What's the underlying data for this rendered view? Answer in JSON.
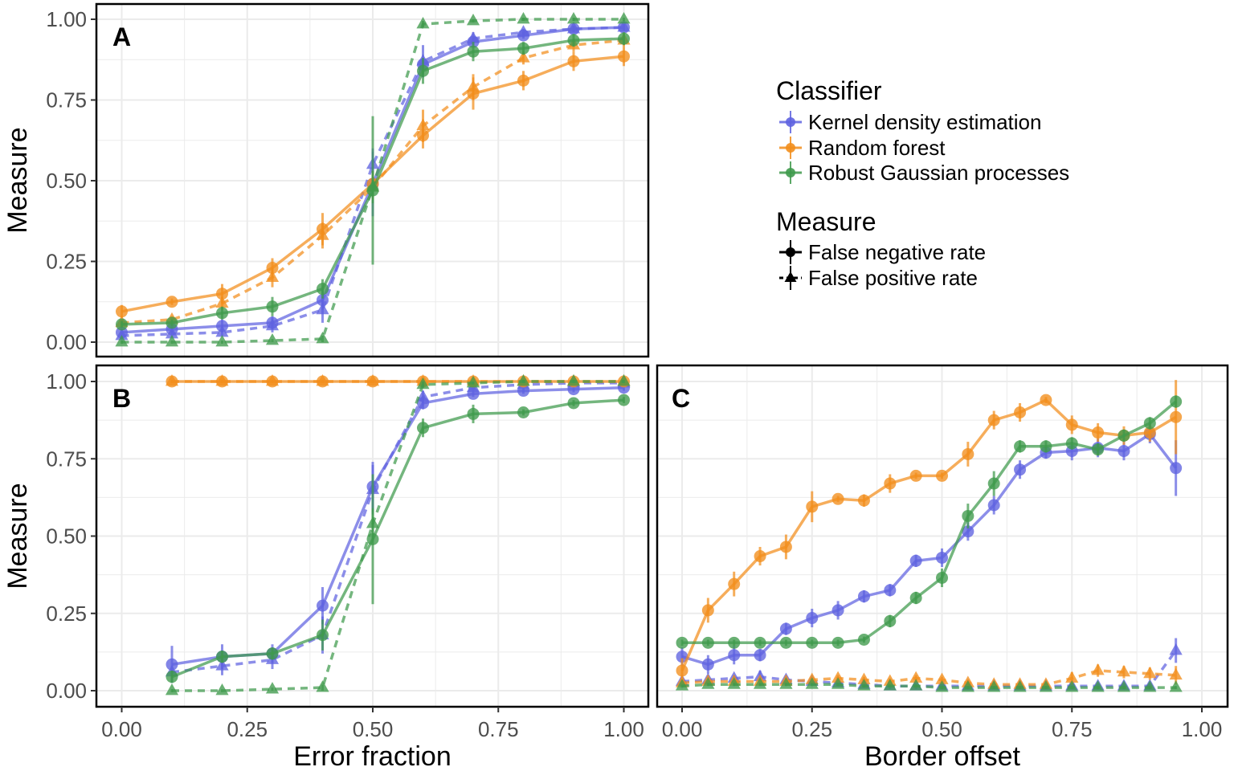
{
  "chart_data": [
    {
      "panel": "A",
      "type": "line",
      "xlabel": "",
      "ylabel": "Measure",
      "xlim": [
        0,
        1
      ],
      "ylim": [
        0,
        1
      ],
      "x_ticks": [
        "0.00",
        "0.25",
        "0.50",
        "0.75",
        "1.00"
      ],
      "y_ticks": [
        "0.00",
        "0.25",
        "0.50",
        "0.75",
        "1.00"
      ],
      "x": [
        0.0,
        0.1,
        0.2,
        0.3,
        0.4,
        0.5,
        0.6,
        0.7,
        0.8,
        0.9,
        1.0
      ],
      "series": [
        {
          "classifier": "kde",
          "measure": "fnr",
          "values": [
            0.03,
            0.04,
            0.05,
            0.06,
            0.13,
            0.49,
            0.86,
            0.93,
            0.95,
            0.97,
            0.975
          ],
          "err": [
            0.01,
            0.01,
            0.02,
            0.02,
            0.03,
            0.1,
            0.02,
            0.01,
            0.01,
            0.01,
            0.01
          ]
        },
        {
          "classifier": "kde",
          "measure": "fpr",
          "values": [
            0.02,
            0.025,
            0.03,
            0.05,
            0.1,
            0.55,
            0.87,
            0.94,
            0.96,
            0.97,
            0.975
          ],
          "err": [
            0.01,
            0.01,
            0.01,
            0.02,
            0.04,
            0.05,
            0.05,
            0.02,
            0.01,
            0.01,
            0.01
          ]
        },
        {
          "classifier": "rf",
          "measure": "fnr",
          "values": [
            0.095,
            0.125,
            0.15,
            0.23,
            0.35,
            0.49,
            0.64,
            0.77,
            0.81,
            0.87,
            0.885
          ],
          "err": [
            0.02,
            0.01,
            0.03,
            0.03,
            0.05,
            0.04,
            0.04,
            0.05,
            0.03,
            0.03,
            0.03
          ]
        },
        {
          "classifier": "rf",
          "measure": "fpr",
          "values": [
            0.06,
            0.07,
            0.12,
            0.2,
            0.33,
            0.48,
            0.67,
            0.79,
            0.88,
            0.92,
            0.935
          ],
          "err": [
            0.01,
            0.01,
            0.02,
            0.03,
            0.04,
            0.04,
            0.05,
            0.04,
            0.02,
            0.02,
            0.02
          ]
        },
        {
          "classifier": "rgp",
          "measure": "fnr",
          "values": [
            0.055,
            0.06,
            0.09,
            0.11,
            0.165,
            0.47,
            0.84,
            0.9,
            0.91,
            0.935,
            0.94
          ],
          "err": [
            0.01,
            0.01,
            0.02,
            0.03,
            0.03,
            0.23,
            0.04,
            0.03,
            0.02,
            0.02,
            0.02
          ]
        },
        {
          "classifier": "rgp",
          "measure": "fpr",
          "values": [
            0.0,
            0.0,
            0.0,
            0.005,
            0.01,
            0.48,
            0.985,
            0.995,
            1.0,
            1.0,
            1.0
          ],
          "err": [
            0.005,
            0.005,
            0.005,
            0.005,
            0.01,
            0.05,
            0.01,
            0.005,
            0.005,
            0.005,
            0.005
          ]
        }
      ]
    },
    {
      "panel": "B",
      "type": "line",
      "xlabel": "Error fraction",
      "ylabel": "Measure",
      "xlim": [
        0,
        1
      ],
      "ylim": [
        0,
        1
      ],
      "x_ticks": [
        "0.00",
        "0.25",
        "0.50",
        "0.75",
        "1.00"
      ],
      "y_ticks": [
        "0.00",
        "0.25",
        "0.50",
        "0.75",
        "1.00"
      ],
      "x": [
        0.1,
        0.2,
        0.3,
        0.4,
        0.5,
        0.6,
        0.7,
        0.8,
        0.9,
        1.0
      ],
      "series": [
        {
          "classifier": "kde",
          "measure": "fnr",
          "values": [
            0.085,
            0.11,
            0.12,
            0.275,
            0.66,
            0.93,
            0.96,
            0.97,
            0.975,
            0.98
          ],
          "err": [
            0.06,
            0.04,
            0.03,
            0.06,
            0.08,
            0.02,
            0.01,
            0.01,
            0.01,
            0.01
          ]
        },
        {
          "classifier": "kde",
          "measure": "fpr",
          "values": [
            0.06,
            0.08,
            0.1,
            0.18,
            0.65,
            0.95,
            0.98,
            0.99,
            0.995,
            0.995
          ],
          "err": [
            0.02,
            0.03,
            0.03,
            0.06,
            0.08,
            0.02,
            0.01,
            0.005,
            0.005,
            0.005
          ]
        },
        {
          "classifier": "rf",
          "measure": "fnr",
          "values": [
            1.0,
            1.0,
            1.0,
            1.0,
            1.0,
            1.0,
            1.0,
            1.0,
            1.0,
            1.0
          ],
          "err": [
            0.005,
            0.005,
            0.005,
            0.005,
            0.005,
            0.005,
            0.005,
            0.005,
            0.005,
            0.005
          ]
        },
        {
          "classifier": "rf",
          "measure": "fpr",
          "values": [
            1.0,
            1.0,
            1.0,
            1.0,
            1.0,
            1.0,
            1.0,
            1.0,
            1.0,
            1.0
          ],
          "err": [
            0.005,
            0.005,
            0.005,
            0.005,
            0.005,
            0.005,
            0.005,
            0.005,
            0.005,
            0.005
          ]
        },
        {
          "classifier": "rgp",
          "measure": "fnr",
          "values": [
            0.045,
            0.11,
            0.12,
            0.18,
            0.49,
            0.85,
            0.895,
            0.9,
            0.93,
            0.94
          ],
          "err": [
            0.02,
            0.02,
            0.02,
            0.05,
            0.21,
            0.03,
            0.03,
            0.01,
            0.01,
            0.01
          ]
        },
        {
          "classifier": "rgp",
          "measure": "fpr",
          "values": [
            0.0,
            0.0,
            0.005,
            0.01,
            0.54,
            0.99,
            0.995,
            1.0,
            1.0,
            1.0
          ],
          "err": [
            0.005,
            0.005,
            0.005,
            0.01,
            0.05,
            0.01,
            0.005,
            0.005,
            0.005,
            0.005
          ]
        }
      ]
    },
    {
      "panel": "C",
      "type": "line",
      "xlabel": "Border offset",
      "ylabel": "",
      "xlim": [
        0,
        1
      ],
      "ylim": [
        0,
        1
      ],
      "x_ticks": [
        "0.00",
        "0.25",
        "0.50",
        "0.75",
        "1.00"
      ],
      "x": [
        0.0,
        0.05,
        0.1,
        0.15,
        0.2,
        0.25,
        0.3,
        0.35,
        0.4,
        0.45,
        0.5,
        0.55,
        0.6,
        0.65,
        0.7,
        0.75,
        0.8,
        0.85,
        0.9,
        0.95
      ],
      "series": [
        {
          "classifier": "kde",
          "measure": "fnr",
          "values": [
            0.11,
            0.085,
            0.115,
            0.115,
            0.2,
            0.235,
            0.26,
            0.305,
            0.325,
            0.42,
            0.43,
            0.515,
            0.6,
            0.715,
            0.77,
            0.775,
            0.785,
            0.775,
            0.83,
            0.72
          ],
          "err": [
            0.03,
            0.03,
            0.03,
            0.02,
            0.02,
            0.03,
            0.03,
            0.02,
            0.02,
            0.02,
            0.03,
            0.03,
            0.03,
            0.03,
            0.02,
            0.03,
            0.03,
            0.03,
            0.03,
            0.09
          ]
        },
        {
          "classifier": "kde",
          "measure": "fpr",
          "values": [
            0.03,
            0.035,
            0.04,
            0.045,
            0.035,
            0.03,
            0.025,
            0.02,
            0.015,
            0.015,
            0.015,
            0.015,
            0.015,
            0.015,
            0.015,
            0.015,
            0.015,
            0.015,
            0.015,
            0.13
          ],
          "err": [
            0.01,
            0.01,
            0.01,
            0.02,
            0.01,
            0.01,
            0.01,
            0.01,
            0.01,
            0.01,
            0.01,
            0.01,
            0.01,
            0.01,
            0.01,
            0.01,
            0.01,
            0.01,
            0.01,
            0.04
          ]
        },
        {
          "classifier": "rf",
          "measure": "fnr",
          "values": [
            0.065,
            0.26,
            0.345,
            0.435,
            0.465,
            0.595,
            0.62,
            0.615,
            0.67,
            0.695,
            0.695,
            0.765,
            0.875,
            0.9,
            0.94,
            0.86,
            0.835,
            0.825,
            0.835,
            0.885
          ],
          "err": [
            0.04,
            0.04,
            0.04,
            0.03,
            0.04,
            0.05,
            0.01,
            0.02,
            0.03,
            0.01,
            0.01,
            0.04,
            0.03,
            0.03,
            0.01,
            0.03,
            0.03,
            0.03,
            0.03,
            0.12
          ]
        },
        {
          "classifier": "rf",
          "measure": "fpr",
          "values": [
            0.025,
            0.03,
            0.03,
            0.03,
            0.03,
            0.035,
            0.04,
            0.035,
            0.03,
            0.04,
            0.035,
            0.025,
            0.02,
            0.02,
            0.02,
            0.04,
            0.065,
            0.06,
            0.055,
            0.05
          ],
          "err": [
            0.01,
            0.01,
            0.01,
            0.01,
            0.01,
            0.01,
            0.01,
            0.01,
            0.01,
            0.01,
            0.01,
            0.01,
            0.01,
            0.01,
            0.01,
            0.02,
            0.02,
            0.02,
            0.02,
            0.03
          ]
        },
        {
          "classifier": "rgp",
          "measure": "fnr",
          "values": [
            0.155,
            0.155,
            0.155,
            0.155,
            0.155,
            0.155,
            0.155,
            0.165,
            0.225,
            0.3,
            0.365,
            0.565,
            0.67,
            0.79,
            0.79,
            0.8,
            0.78,
            0.825,
            0.865,
            0.935
          ],
          "err": [
            0.01,
            0.01,
            0.01,
            0.01,
            0.01,
            0.01,
            0.01,
            0.01,
            0.02,
            0.02,
            0.03,
            0.04,
            0.04,
            0.02,
            0.02,
            0.02,
            0.02,
            0.02,
            0.02,
            0.02
          ]
        },
        {
          "classifier": "rgp",
          "measure": "fpr",
          "values": [
            0.015,
            0.02,
            0.02,
            0.02,
            0.02,
            0.02,
            0.02,
            0.015,
            0.015,
            0.015,
            0.01,
            0.01,
            0.01,
            0.01,
            0.01,
            0.01,
            0.01,
            0.01,
            0.01,
            0.01
          ],
          "err": [
            0.005,
            0.005,
            0.005,
            0.005,
            0.005,
            0.005,
            0.005,
            0.005,
            0.005,
            0.005,
            0.005,
            0.005,
            0.005,
            0.005,
            0.005,
            0.005,
            0.005,
            0.005,
            0.005,
            0.005
          ]
        }
      ]
    }
  ],
  "legend": {
    "classifier_title": "Classifier",
    "classifiers": [
      {
        "key": "kde",
        "label": "Kernel density estimation",
        "color": "#5f63e0"
      },
      {
        "key": "rf",
        "label": "Random forest",
        "color": "#f28e1c"
      },
      {
        "key": "rgp",
        "label": "Robust Gaussian processes",
        "color": "#3f9a4c"
      }
    ],
    "measure_title": "Measure",
    "measures": [
      {
        "key": "fnr",
        "label": "False negative rate",
        "shape": "circle",
        "line": "solid"
      },
      {
        "key": "fpr",
        "label": "False positive rate",
        "shape": "triangle",
        "line": "dashed"
      }
    ]
  }
}
